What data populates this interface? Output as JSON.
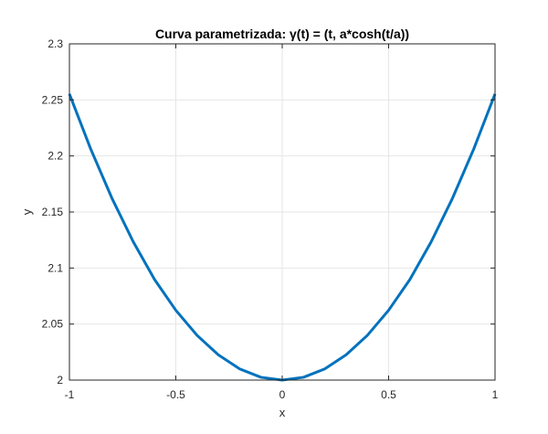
{
  "chart_data": {
    "type": "line",
    "title": "Curva parametrizada: γ(t) = (t, a*cosh(t/a))",
    "xlabel": "x",
    "ylabel": "y",
    "xlim": [
      -1,
      1
    ],
    "ylim": [
      2,
      2.3
    ],
    "grid": true,
    "xticks": [
      -1,
      -0.5,
      0,
      0.5,
      1
    ],
    "xtick_labels": [
      "-1",
      "-0.5",
      "0",
      "0.5",
      "1"
    ],
    "yticks": [
      2,
      2.05,
      2.1,
      2.15,
      2.2,
      2.25,
      2.3
    ],
    "ytick_labels": [
      "2",
      "2.05",
      "2.1",
      "2.15",
      "2.2",
      "2.25",
      "2.3"
    ],
    "series": [
      {
        "color": "#0072BD",
        "x": [
          -1,
          -0.9,
          -0.8,
          -0.7,
          -0.6,
          -0.5,
          -0.4,
          -0.3,
          -0.2,
          -0.1,
          0,
          0.1,
          0.2,
          0.3,
          0.4,
          0.5,
          0.6,
          0.7,
          0.8,
          0.9,
          1
        ],
        "y": [
          2.2553,
          2.2062,
          2.1622,
          2.1234,
          2.0898,
          2.0623,
          2.0399,
          2.0225,
          2.01,
          2.0025,
          2.0,
          2.0025,
          2.01,
          2.0225,
          2.0399,
          2.0623,
          2.0898,
          2.1234,
          2.1622,
          2.2062,
          2.2553
        ]
      }
    ]
  }
}
